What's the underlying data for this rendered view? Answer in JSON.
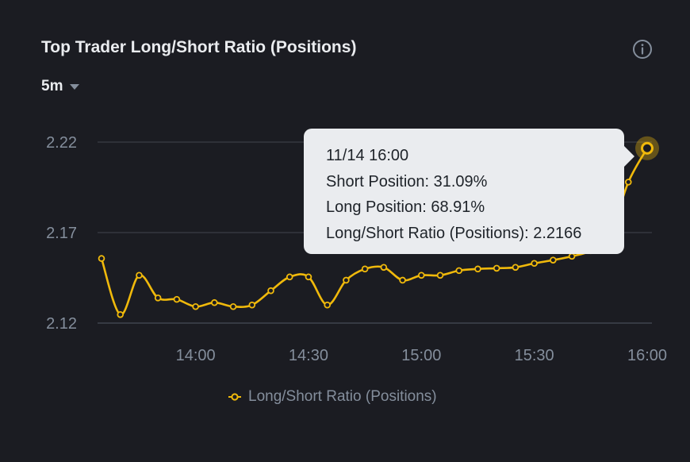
{
  "header": {
    "title": "Top Trader Long/Short Ratio (Positions)",
    "info_icon": "info-circle-icon",
    "interval": "5m",
    "interval_icon": "caret-down-icon"
  },
  "chart_data": {
    "type": "line",
    "title": "Top Trader Long/Short Ratio (Positions)",
    "xlabel": "",
    "ylabel": "",
    "x_tick_labels": [
      "14:00",
      "14:30",
      "15:00",
      "15:30",
      "16:00"
    ],
    "y_tick_labels": [
      "2.22",
      "2.17",
      "2.12"
    ],
    "y_ticks": [
      2.22,
      2.17,
      2.12
    ],
    "ylim": [
      2.12,
      2.22
    ],
    "grid": "horizontal",
    "legend_position": "bottom-center",
    "colors": {
      "line": "#f0b90b",
      "background": "#1b1c22",
      "grid": "#3a3d45",
      "tick": "#848e9c"
    },
    "series": [
      {
        "name": "Long/Short Ratio (Positions)",
        "x": [
          "13:35",
          "13:40",
          "13:45",
          "13:50",
          "13:55",
          "14:00",
          "14:05",
          "14:10",
          "14:15",
          "14:20",
          "14:25",
          "14:30",
          "14:35",
          "14:40",
          "14:45",
          "14:50",
          "14:55",
          "15:00",
          "15:05",
          "15:10",
          "15:15",
          "15:20",
          "15:25",
          "15:30",
          "15:35",
          "15:40",
          "15:45",
          "15:50",
          "15:55",
          "16:00"
        ],
        "values": [
          2.1557,
          2.1247,
          2.1464,
          2.1339,
          2.1331,
          2.1291,
          2.1313,
          2.1291,
          2.13,
          2.1379,
          2.1455,
          2.1455,
          2.13,
          2.1437,
          2.1499,
          2.1508,
          2.1437,
          2.1464,
          2.1464,
          2.149,
          2.1499,
          2.1503,
          2.1508,
          2.153,
          2.1548,
          2.1569,
          2.16,
          2.168,
          2.1979,
          2.2166
        ]
      }
    ],
    "tooltip": {
      "time": "11/14 16:00",
      "short_position": "Short Position: 31.09%",
      "long_position": "Long Position: 68.91%",
      "ratio": "Long/Short Ratio (Positions): 2.2166"
    }
  },
  "legend": {
    "icon": "line-dot-icon",
    "label": "Long/Short Ratio (Positions)"
  }
}
